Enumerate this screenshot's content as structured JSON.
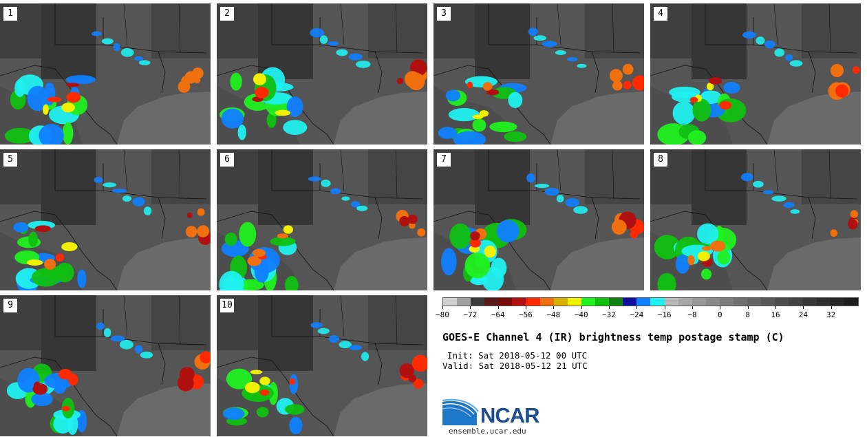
{
  "panels": [
    {
      "label": "1"
    },
    {
      "label": "2"
    },
    {
      "label": "3"
    },
    {
      "label": "4"
    },
    {
      "label": "5"
    },
    {
      "label": "6"
    },
    {
      "label": "7"
    },
    {
      "label": "8"
    },
    {
      "label": "9"
    },
    {
      "label": "10"
    }
  ],
  "colorbar": {
    "colors": [
      "#d0d0d0",
      "#a0a0a0",
      "#3a3a3a",
      "#5a1a1a",
      "#7a0a0a",
      "#b01010",
      "#ff2a00",
      "#f07010",
      "#d8b000",
      "#f0f000",
      "#20f020",
      "#10c010",
      "#108010",
      "#1010a0",
      "#1080ff",
      "#20f0f0",
      "#b8b8b8",
      "#a8a8a8",
      "#989898",
      "#8a8a8a",
      "#7c7c7c",
      "#707070",
      "#646464",
      "#585858",
      "#4c4c4c",
      "#424242",
      "#383838",
      "#2e2e2e",
      "#262626",
      "#1e1e1e"
    ],
    "ticks": [
      "−80",
      "−72",
      "−64",
      "−56",
      "−48",
      "−40",
      "−32",
      "−24",
      "−16",
      "−8",
      "0",
      "8",
      "16",
      "24",
      "32"
    ]
  },
  "title": "GOES-E Channel 4 (IR) brightness temp postage stamp (C)",
  "init": "Init: Sat 2018-05-12 00 UTC",
  "valid": "Valid: Sat 2018-05-12 21 UTC",
  "logo": {
    "name": "NCAR",
    "url": "ensemble.ucar.edu"
  }
}
